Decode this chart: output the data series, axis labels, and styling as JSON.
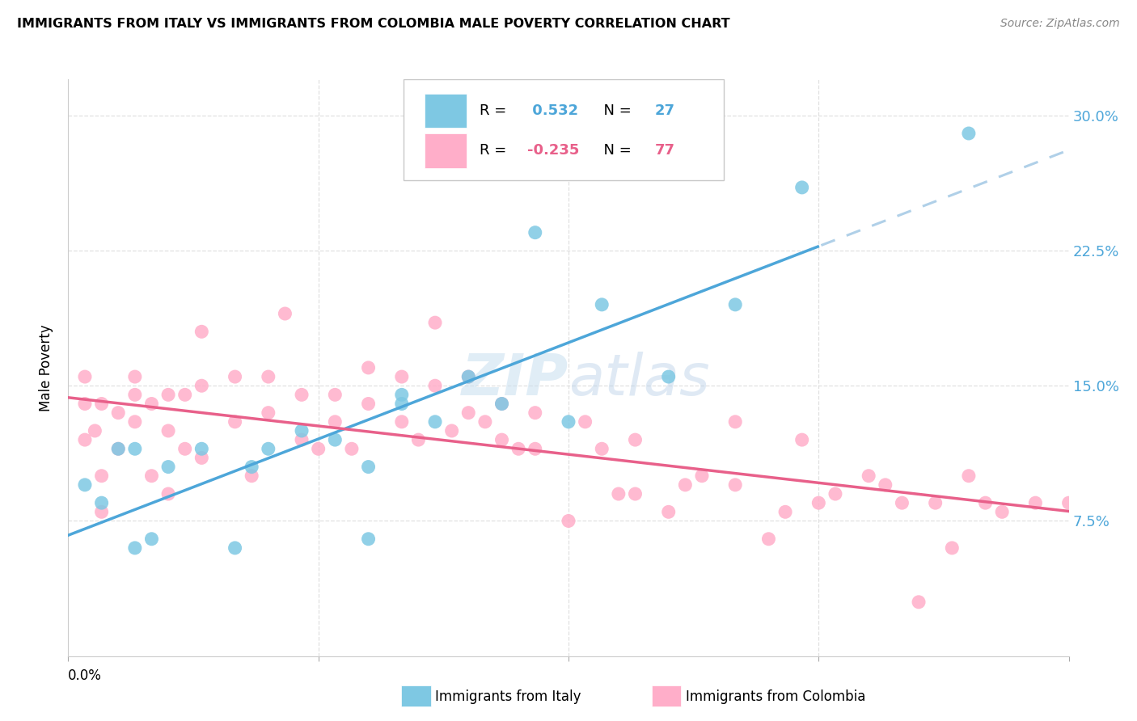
{
  "title": "IMMIGRANTS FROM ITALY VS IMMIGRANTS FROM COLOMBIA MALE POVERTY CORRELATION CHART",
  "source": "Source: ZipAtlas.com",
  "ylabel": "Male Poverty",
  "italy_R": 0.532,
  "italy_N": 27,
  "colombia_R": -0.235,
  "colombia_N": 77,
  "xmin": 0.0,
  "xmax": 0.3,
  "ymin": 0.0,
  "ymax": 0.32,
  "yticks": [
    0.075,
    0.15,
    0.225,
    0.3
  ],
  "italy_color": "#7ec8e3",
  "colombia_color": "#ffaec9",
  "italy_line_color": "#4da6d9",
  "colombia_line_color": "#e8608a",
  "dashed_line_color": "#b0d0e8",
  "grid_color": "#e0e0e0",
  "watermark": "ZIPatlas",
  "italy_scatter_x": [
    0.005,
    0.01,
    0.015,
    0.02,
    0.02,
    0.025,
    0.03,
    0.04,
    0.05,
    0.055,
    0.06,
    0.07,
    0.08,
    0.09,
    0.09,
    0.1,
    0.1,
    0.11,
    0.12,
    0.13,
    0.14,
    0.15,
    0.16,
    0.18,
    0.2,
    0.22,
    0.27
  ],
  "italy_scatter_y": [
    0.095,
    0.085,
    0.115,
    0.06,
    0.115,
    0.065,
    0.105,
    0.115,
    0.06,
    0.105,
    0.115,
    0.125,
    0.12,
    0.105,
    0.065,
    0.14,
    0.145,
    0.13,
    0.155,
    0.14,
    0.235,
    0.13,
    0.195,
    0.155,
    0.195,
    0.26,
    0.29
  ],
  "colombia_scatter_x": [
    0.005,
    0.005,
    0.005,
    0.008,
    0.01,
    0.01,
    0.01,
    0.015,
    0.015,
    0.02,
    0.02,
    0.02,
    0.025,
    0.025,
    0.03,
    0.03,
    0.03,
    0.035,
    0.035,
    0.04,
    0.04,
    0.04,
    0.05,
    0.05,
    0.055,
    0.06,
    0.06,
    0.065,
    0.07,
    0.07,
    0.075,
    0.08,
    0.08,
    0.085,
    0.09,
    0.09,
    0.1,
    0.1,
    0.105,
    0.11,
    0.11,
    0.115,
    0.12,
    0.12,
    0.125,
    0.13,
    0.13,
    0.135,
    0.14,
    0.14,
    0.15,
    0.155,
    0.16,
    0.165,
    0.17,
    0.17,
    0.18,
    0.185,
    0.19,
    0.2,
    0.2,
    0.21,
    0.215,
    0.22,
    0.225,
    0.23,
    0.24,
    0.245,
    0.25,
    0.255,
    0.26,
    0.265,
    0.27,
    0.275,
    0.28,
    0.29,
    0.3
  ],
  "colombia_scatter_y": [
    0.12,
    0.14,
    0.155,
    0.125,
    0.14,
    0.1,
    0.08,
    0.135,
    0.115,
    0.155,
    0.145,
    0.13,
    0.14,
    0.1,
    0.145,
    0.125,
    0.09,
    0.145,
    0.115,
    0.18,
    0.15,
    0.11,
    0.155,
    0.13,
    0.1,
    0.155,
    0.135,
    0.19,
    0.145,
    0.12,
    0.115,
    0.145,
    0.13,
    0.115,
    0.16,
    0.14,
    0.155,
    0.13,
    0.12,
    0.185,
    0.15,
    0.125,
    0.155,
    0.135,
    0.13,
    0.14,
    0.12,
    0.115,
    0.135,
    0.115,
    0.075,
    0.13,
    0.115,
    0.09,
    0.12,
    0.09,
    0.08,
    0.095,
    0.1,
    0.13,
    0.095,
    0.065,
    0.08,
    0.12,
    0.085,
    0.09,
    0.1,
    0.095,
    0.085,
    0.03,
    0.085,
    0.06,
    0.1,
    0.085,
    0.08,
    0.085,
    0.085
  ]
}
